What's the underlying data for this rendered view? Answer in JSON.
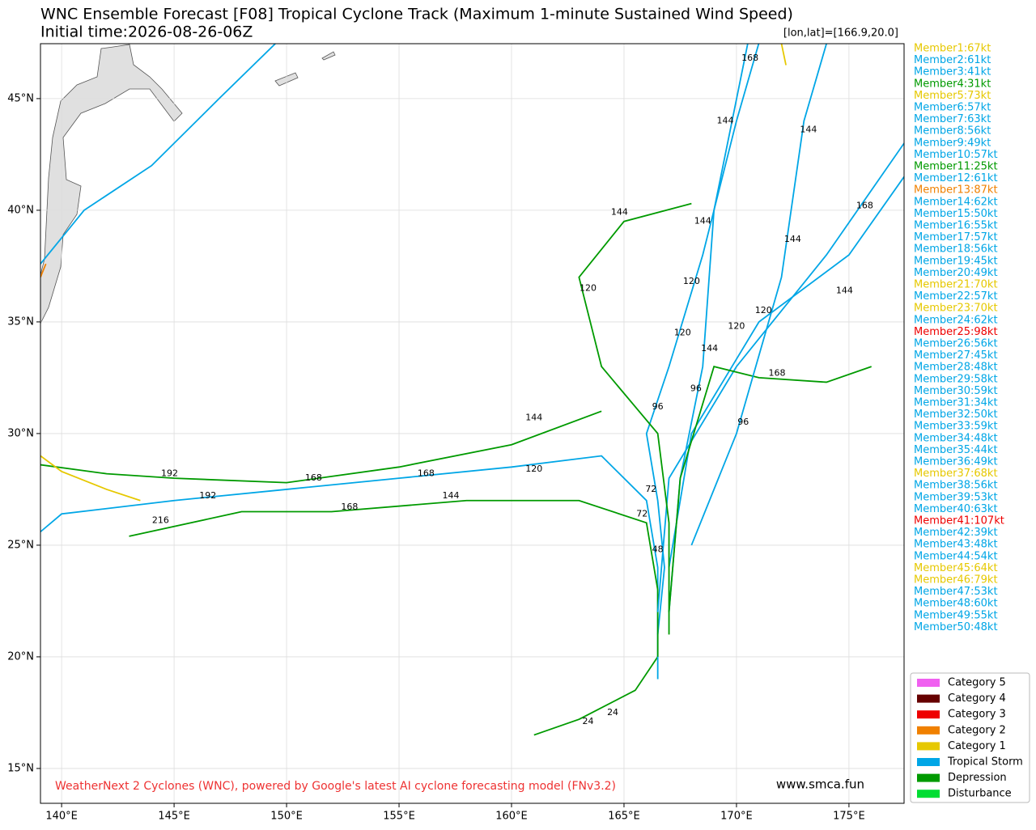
{
  "map": {
    "title": "WNC Ensemble Forecast [F08] Tropical Cyclone Track (Maximum 1-minute Sustained Wind Speed)",
    "subtitle": "Initial time:2026-08-26-06Z",
    "coord_label": "[lon,lat]=[166.9,20.0]",
    "credit": "WeatherNext 2 Cyclones (WNC), powered by Google's latest AI cyclone forecasting model (FNv3.2)",
    "website": "www.smca.fun",
    "xlim": [
      139.06,
      177.45
    ],
    "ylim": [
      13.44,
      47.46
    ],
    "xticks": [
      {
        "value": 140,
        "label": "140°E"
      },
      {
        "value": 145,
        "label": "145°E"
      },
      {
        "value": 150,
        "label": "150°E"
      },
      {
        "value": 155,
        "label": "155°E"
      },
      {
        "value": 160,
        "label": "160°E"
      },
      {
        "value": 165,
        "label": "165°E"
      },
      {
        "value": 170,
        "label": "170°E"
      },
      {
        "value": 175,
        "label": "175°E"
      }
    ],
    "yticks": [
      {
        "value": 15,
        "label": "15°N"
      },
      {
        "value": 20,
        "label": "20°N"
      },
      {
        "value": 25,
        "label": "25°N"
      },
      {
        "value": 30,
        "label": "30°N"
      },
      {
        "value": 35,
        "label": "35°N"
      },
      {
        "value": 40,
        "label": "40°N"
      },
      {
        "value": 45,
        "label": "45°N"
      }
    ],
    "grid": true,
    "members": [
      {
        "label": "Member1:67kt",
        "color": "#e6c800"
      },
      {
        "label": "Member2:61kt",
        "color": "#00a6e6"
      },
      {
        "label": "Member3:41kt",
        "color": "#00a6e6"
      },
      {
        "label": "Member4:31kt",
        "color": "#009a00"
      },
      {
        "label": "Member5:73kt",
        "color": "#e6c800"
      },
      {
        "label": "Member6:57kt",
        "color": "#00a6e6"
      },
      {
        "label": "Member7:63kt",
        "color": "#00a6e6"
      },
      {
        "label": "Member8:56kt",
        "color": "#00a6e6"
      },
      {
        "label": "Member9:49kt",
        "color": "#00a6e6"
      },
      {
        "label": "Member10:57kt",
        "color": "#00a6e6"
      },
      {
        "label": "Member11:25kt",
        "color": "#009a00"
      },
      {
        "label": "Member12:61kt",
        "color": "#00a6e6"
      },
      {
        "label": "Member13:87kt",
        "color": "#f08000"
      },
      {
        "label": "Member14:62kt",
        "color": "#00a6e6"
      },
      {
        "label": "Member15:50kt",
        "color": "#00a6e6"
      },
      {
        "label": "Member16:55kt",
        "color": "#00a6e6"
      },
      {
        "label": "Member17:57kt",
        "color": "#00a6e6"
      },
      {
        "label": "Member18:56kt",
        "color": "#00a6e6"
      },
      {
        "label": "Member19:45kt",
        "color": "#00a6e6"
      },
      {
        "label": "Member20:49kt",
        "color": "#00a6e6"
      },
      {
        "label": "Member21:70kt",
        "color": "#e6c800"
      },
      {
        "label": "Member22:57kt",
        "color": "#00a6e6"
      },
      {
        "label": "Member23:70kt",
        "color": "#e6c800"
      },
      {
        "label": "Member24:62kt",
        "color": "#00a6e6"
      },
      {
        "label": "Member25:98kt",
        "color": "#ee0000"
      },
      {
        "label": "Member26:56kt",
        "color": "#00a6e6"
      },
      {
        "label": "Member27:45kt",
        "color": "#00a6e6"
      },
      {
        "label": "Member28:48kt",
        "color": "#00a6e6"
      },
      {
        "label": "Member29:58kt",
        "color": "#00a6e6"
      },
      {
        "label": "Member30:59kt",
        "color": "#00a6e6"
      },
      {
        "label": "Member31:34kt",
        "color": "#00a6e6"
      },
      {
        "label": "Member32:50kt",
        "color": "#00a6e6"
      },
      {
        "label": "Member33:59kt",
        "color": "#00a6e6"
      },
      {
        "label": "Member34:48kt",
        "color": "#00a6e6"
      },
      {
        "label": "Member35:44kt",
        "color": "#00a6e6"
      },
      {
        "label": "Member36:49kt",
        "color": "#00a6e6"
      },
      {
        "label": "Member37:68kt",
        "color": "#e6c800"
      },
      {
        "label": "Member38:56kt",
        "color": "#00a6e6"
      },
      {
        "label": "Member39:53kt",
        "color": "#00a6e6"
      },
      {
        "label": "Member40:63kt",
        "color": "#00a6e6"
      },
      {
        "label": "Member41:107kt",
        "color": "#ee0000"
      },
      {
        "label": "Member42:39kt",
        "color": "#00a6e6"
      },
      {
        "label": "Member43:48kt",
        "color": "#00a6e6"
      },
      {
        "label": "Member44:54kt",
        "color": "#00a6e6"
      },
      {
        "label": "Member45:64kt",
        "color": "#e6c800"
      },
      {
        "label": "Member46:79kt",
        "color": "#e6c800"
      },
      {
        "label": "Member47:53kt",
        "color": "#00a6e6"
      },
      {
        "label": "Member48:60kt",
        "color": "#00a6e6"
      },
      {
        "label": "Member49:55kt",
        "color": "#00a6e6"
      },
      {
        "label": "Member50:48kt",
        "color": "#00a6e6"
      }
    ],
    "legend": [
      {
        "label": "Category 5",
        "color": "#f060f0"
      },
      {
        "label": "Category 4",
        "color": "#660000"
      },
      {
        "label": "Category 3",
        "color": "#ee0000"
      },
      {
        "label": "Category 2",
        "color": "#f08000"
      },
      {
        "label": "Category 1",
        "color": "#e6c800"
      },
      {
        "label": "Tropical Storm",
        "color": "#00a6e6"
      },
      {
        "label": "Depression",
        "color": "#009a00"
      },
      {
        "label": "Disturbance",
        "color": "#00dd33"
      }
    ],
    "tracks": [
      {
        "color": "#009a00",
        "lon": [
          161,
          163,
          165.5,
          166.5
        ],
        "lat": [
          16.5,
          17.2,
          18.5,
          20
        ],
        "labels": [
          {
            "lon": 163.4,
            "lat": 17.1,
            "text": "24"
          },
          {
            "lon": 164.5,
            "lat": 17.5,
            "text": "24"
          }
        ]
      },
      {
        "color": "#00a6e6",
        "lon": [
          166.5,
          166.5,
          166.8,
          166.5,
          166,
          167,
          168.5,
          170,
          171
        ],
        "lat": [
          19,
          21,
          24,
          27,
          30,
          33,
          38,
          44,
          47.5
        ],
        "labels": [
          {
            "lon": 166.5,
            "lat": 24.8,
            "text": "48"
          },
          {
            "lon": 166.2,
            "lat": 27.5,
            "text": "72"
          },
          {
            "lon": 166.5,
            "lat": 31.2,
            "text": "96"
          },
          {
            "lon": 168,
            "lat": 36.8,
            "text": "120"
          },
          {
            "lon": 169.5,
            "lat": 44,
            "text": "144"
          },
          {
            "lon": 170.6,
            "lat": 46.8,
            "text": "168"
          }
        ]
      },
      {
        "color": "#00a6e6",
        "lon": [
          166.5,
          166.5,
          166,
          164,
          160,
          155,
          150,
          145,
          140,
          139.06
        ],
        "lat": [
          21,
          24,
          27,
          29,
          28.5,
          28,
          27.5,
          27,
          26.4,
          25.6
        ],
        "labels": [
          {
            "lon": 165.8,
            "lat": 26.4,
            "text": "72"
          },
          {
            "lon": 161,
            "lat": 28.4,
            "text": "120"
          },
          {
            "lon": 156.2,
            "lat": 28.2,
            "text": "168"
          },
          {
            "lon": 146.5,
            "lat": 27.2,
            "text": "192"
          }
        ]
      },
      {
        "color": "#009a00",
        "lon": [
          166.5,
          166.5,
          166,
          163,
          158,
          152,
          148,
          143
        ],
        "lat": [
          20,
          23,
          26,
          27,
          27,
          26.5,
          26.5,
          25.4
        ],
        "labels": [
          {
            "lon": 157.3,
            "lat": 27.2,
            "text": "144"
          },
          {
            "lon": 152.8,
            "lat": 26.7,
            "text": "168"
          },
          {
            "lon": 144.4,
            "lat": 26.1,
            "text": "216"
          }
        ]
      },
      {
        "color": "#009a00",
        "lon": [
          139.06,
          142,
          145,
          150,
          155,
          160,
          164
        ],
        "lat": [
          28.6,
          28.2,
          28,
          27.8,
          28.5,
          29.5,
          31
        ],
        "labels": [
          {
            "lon": 144.8,
            "lat": 28.2,
            "text": "192"
          },
          {
            "lon": 151.2,
            "lat": 28,
            "text": "168"
          },
          {
            "lon": 161,
            "lat": 30.7,
            "text": "144"
          }
        ]
      },
      {
        "color": "#00a6e6",
        "lon": [
          139.06,
          141,
          144,
          147,
          149.5
        ],
        "lat": [
          37.6,
          40,
          42,
          45,
          47.46
        ],
        "labels": []
      },
      {
        "color": "#f08000",
        "lon": [
          139.06,
          139.3
        ],
        "lat": [
          37,
          37.6
        ],
        "labels": []
      },
      {
        "color": "#00a6e6",
        "lon": [
          166.5,
          167,
          170,
          174,
          177.45
        ],
        "lat": [
          22,
          28,
          33,
          38,
          43
        ],
        "labels": [
          {
            "lon": 170,
            "lat": 34.8,
            "text": "120"
          },
          {
            "lon": 175.7,
            "lat": 40.2,
            "text": "168"
          }
        ]
      },
      {
        "color": "#00a6e6",
        "lon": [
          167,
          168,
          171,
          175,
          177.45
        ],
        "lat": [
          24,
          30,
          35,
          38,
          41.5
        ],
        "labels": [
          {
            "lon": 168.2,
            "lat": 32,
            "text": "96"
          },
          {
            "lon": 171.2,
            "lat": 35.5,
            "text": "120"
          },
          {
            "lon": 174.8,
            "lat": 36.4,
            "text": "144"
          }
        ]
      },
      {
        "color": "#00a6e6",
        "lon": [
          167,
          167.5,
          168.5,
          169,
          170.5
        ],
        "lat": [
          22,
          28,
          33,
          40,
          47.46
        ],
        "labels": [
          {
            "lon": 167.6,
            "lat": 34.5,
            "text": "120"
          },
          {
            "lon": 168.5,
            "lat": 39.5,
            "text": "144"
          }
        ]
      },
      {
        "color": "#009a00",
        "lon": [
          167,
          167,
          166.5,
          164,
          163,
          165,
          168
        ],
        "lat": [
          21,
          26,
          30,
          33,
          37,
          39.5,
          40.3
        ],
        "labels": [
          {
            "lon": 163.4,
            "lat": 36.5,
            "text": "120"
          },
          {
            "lon": 164.8,
            "lat": 39.9,
            "text": "144"
          }
        ]
      },
      {
        "color": "#009a00",
        "lon": [
          167,
          167.5,
          169,
          171,
          174,
          176
        ],
        "lat": [
          22,
          28,
          33,
          32.5,
          32.3,
          33
        ],
        "labels": [
          {
            "lon": 168.8,
            "lat": 33.8,
            "text": "144"
          },
          {
            "lon": 171.8,
            "lat": 32.7,
            "text": "168"
          }
        ]
      },
      {
        "color": "#e6c800",
        "lon": [
          139.06,
          140,
          142,
          143.5
        ],
        "lat": [
          29,
          28.3,
          27.5,
          27
        ],
        "labels": []
      },
      {
        "color": "#00a6e6",
        "lon": [
          168,
          170,
          172,
          173,
          174
        ],
        "lat": [
          25,
          30,
          37,
          44,
          47.46
        ],
        "labels": [
          {
            "lon": 170.3,
            "lat": 30.5,
            "text": "96"
          },
          {
            "lon": 172.5,
            "lat": 38.7,
            "text": "144"
          },
          {
            "lon": 173.2,
            "lat": 43.6,
            "text": "144"
          }
        ]
      },
      {
        "color": "#e6c800",
        "lon": [
          172,
          172.2
        ],
        "lat": [
          47.46,
          46.5
        ],
        "labels": []
      }
    ]
  }
}
